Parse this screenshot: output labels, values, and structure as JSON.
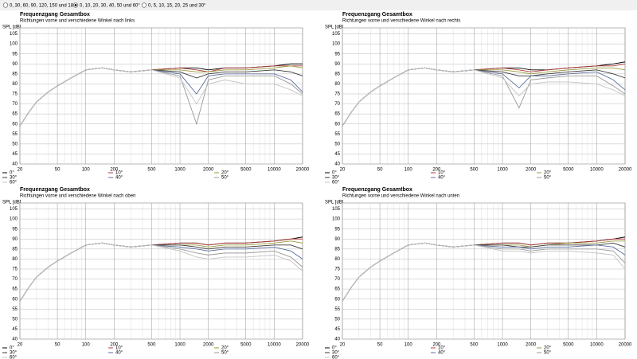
{
  "controls": {
    "options": [
      {
        "label": "0, 30, 60, 90, 120, 150 und 180°",
        "selected": false
      },
      {
        "label": "0, 10, 20, 30, 40, 50 und 60°",
        "selected": true
      },
      {
        "label": "0, 5, 10, 15, 20, 25 und 30°",
        "selected": false
      }
    ]
  },
  "chart_data": [
    {
      "type": "line",
      "title": "Frequenzgang Gesamtbox",
      "subtitle": "Richtungen vorne und verschiedene Winkel nach links",
      "ylabel": "SPL [dB]",
      "log_x": true,
      "grid": true,
      "xlim": [
        20,
        20000
      ],
      "ylim": [
        40,
        108
      ],
      "xticks": [
        20,
        50,
        100,
        200,
        500,
        1000,
        2000,
        5000,
        10000,
        20000
      ],
      "xminorticks": [
        30,
        40,
        60,
        70,
        80,
        90,
        300,
        400,
        600,
        700,
        800,
        900,
        3000,
        4000,
        6000,
        7000,
        8000,
        9000
      ],
      "yticks": [
        40,
        45,
        50,
        55,
        60,
        65,
        70,
        75,
        80,
        85,
        90,
        95,
        100,
        105
      ],
      "x": [
        20,
        25,
        30,
        40,
        50,
        70,
        100,
        150,
        200,
        300,
        500,
        1000,
        1500,
        2000,
        3000,
        5000,
        10000,
        15000,
        20000
      ],
      "series": [
        {
          "name": "0°",
          "color": "#000000",
          "values": [
            59,
            66,
            71,
            76,
            79,
            83,
            87,
            88,
            87,
            86,
            87,
            88,
            88,
            87,
            88,
            88,
            89,
            90,
            90
          ]
        },
        {
          "name": "10°",
          "color": "#b03a3a",
          "values": [
            59,
            66,
            71,
            76,
            79,
            83,
            87,
            88,
            87,
            86,
            87,
            88,
            87,
            86,
            88,
            88,
            89,
            89,
            89
          ]
        },
        {
          "name": "20°",
          "color": "#9a9a3a",
          "values": [
            59,
            66,
            71,
            76,
            79,
            83,
            87,
            88,
            87,
            86,
            87,
            87,
            86,
            86,
            87,
            87,
            88,
            89,
            88
          ]
        },
        {
          "name": "30°",
          "color": "#3a3a3a",
          "values": [
            59,
            66,
            71,
            76,
            79,
            83,
            87,
            88,
            87,
            86,
            87,
            86,
            83,
            85,
            86,
            86,
            87,
            86,
            84
          ]
        },
        {
          "name": "40°",
          "color": "#5a6e9c",
          "values": [
            59,
            66,
            71,
            76,
            79,
            83,
            87,
            88,
            87,
            86,
            87,
            85,
            75,
            84,
            85,
            85,
            85,
            82,
            76
          ]
        },
        {
          "name": "50°",
          "color": "#9a9a9a",
          "values": [
            59,
            66,
            71,
            76,
            79,
            83,
            87,
            88,
            87,
            86,
            87,
            84,
            60,
            82,
            84,
            84,
            84,
            80,
            75
          ]
        },
        {
          "name": "60°",
          "color": "#c4c4c4",
          "values": [
            59,
            66,
            71,
            76,
            79,
            83,
            87,
            88,
            87,
            86,
            87,
            83,
            70,
            80,
            82,
            80,
            80,
            77,
            74
          ]
        }
      ]
    },
    {
      "type": "line",
      "title": "Frequenzgang Gesamtbox",
      "subtitle": "Richtungen vorne und verschiedene Winkel nach rechts",
      "ylabel": "SPL [dB]",
      "log_x": true,
      "grid": true,
      "xlim": [
        20,
        20000
      ],
      "ylim": [
        40,
        108
      ],
      "xticks": [
        20,
        50,
        100,
        200,
        500,
        1000,
        2000,
        5000,
        10000,
        20000
      ],
      "xminorticks": [
        30,
        40,
        60,
        70,
        80,
        90,
        300,
        400,
        600,
        700,
        800,
        900,
        3000,
        4000,
        6000,
        7000,
        8000,
        9000
      ],
      "yticks": [
        40,
        45,
        50,
        55,
        60,
        65,
        70,
        75,
        80,
        85,
        90,
        95,
        100,
        105
      ],
      "x": [
        20,
        25,
        30,
        40,
        50,
        70,
        100,
        150,
        200,
        300,
        500,
        1000,
        1500,
        2000,
        3000,
        5000,
        10000,
        15000,
        20000
      ],
      "series": [
        {
          "name": "0°",
          "color": "#000000",
          "values": [
            59,
            66,
            71,
            76,
            79,
            83,
            87,
            88,
            87,
            86,
            87,
            88,
            88,
            87,
            87,
            88,
            89,
            90,
            91
          ]
        },
        {
          "name": "10°",
          "color": "#b03a3a",
          "values": [
            59,
            66,
            71,
            76,
            79,
            83,
            87,
            88,
            87,
            86,
            87,
            88,
            87,
            86,
            87,
            88,
            89,
            89,
            90
          ]
        },
        {
          "name": "20°",
          "color": "#9a9a3a",
          "values": [
            59,
            66,
            71,
            76,
            79,
            83,
            87,
            88,
            87,
            86,
            87,
            87,
            86,
            85,
            86,
            87,
            88,
            88,
            87
          ]
        },
        {
          "name": "30°",
          "color": "#3a3a3a",
          "values": [
            59,
            66,
            71,
            76,
            79,
            83,
            87,
            88,
            87,
            86,
            87,
            86,
            84,
            84,
            85,
            86,
            87,
            85,
            83
          ]
        },
        {
          "name": "40°",
          "color": "#5a6e9c",
          "values": [
            59,
            66,
            71,
            76,
            79,
            83,
            87,
            88,
            87,
            86,
            87,
            85,
            78,
            84,
            84,
            85,
            86,
            82,
            77
          ]
        },
        {
          "name": "50°",
          "color": "#9a9a9a",
          "values": [
            59,
            66,
            71,
            76,
            79,
            83,
            87,
            88,
            87,
            86,
            87,
            84,
            68,
            82,
            83,
            84,
            84,
            79,
            75
          ]
        },
        {
          "name": "60°",
          "color": "#c4c4c4",
          "values": [
            59,
            66,
            71,
            76,
            79,
            83,
            87,
            88,
            87,
            86,
            87,
            83,
            74,
            80,
            81,
            81,
            80,
            77,
            74
          ]
        }
      ]
    },
    {
      "type": "line",
      "title": "Frequenzgang Gesamtbox",
      "subtitle": "Richtungen vorne und verschiedene Winkel nach oben",
      "ylabel": "SPL [dB]",
      "log_x": true,
      "grid": true,
      "xlim": [
        20,
        20000
      ],
      "ylim": [
        40,
        108
      ],
      "xticks": [
        20,
        50,
        100,
        200,
        500,
        1000,
        2000,
        5000,
        10000,
        20000
      ],
      "xminorticks": [
        30,
        40,
        60,
        70,
        80,
        90,
        300,
        400,
        600,
        700,
        800,
        900,
        3000,
        4000,
        6000,
        7000,
        8000,
        9000
      ],
      "yticks": [
        40,
        45,
        50,
        55,
        60,
        65,
        70,
        75,
        80,
        85,
        90,
        95,
        100,
        105
      ],
      "x": [
        20,
        25,
        30,
        40,
        50,
        70,
        100,
        150,
        200,
        300,
        500,
        1000,
        1500,
        2000,
        3000,
        5000,
        10000,
        15000,
        20000
      ],
      "series": [
        {
          "name": "0°",
          "color": "#000000",
          "values": [
            59,
            66,
            71,
            76,
            79,
            83,
            87,
            88,
            87,
            86,
            87,
            88,
            88,
            87,
            88,
            88,
            89,
            90,
            91
          ]
        },
        {
          "name": "10°",
          "color": "#b03a3a",
          "values": [
            59,
            66,
            71,
            76,
            79,
            83,
            87,
            88,
            87,
            86,
            87,
            88,
            88,
            87,
            88,
            88,
            89,
            90,
            90
          ]
        },
        {
          "name": "20°",
          "color": "#9a9a3a",
          "values": [
            59,
            66,
            71,
            76,
            79,
            83,
            87,
            88,
            87,
            86,
            87,
            87,
            87,
            86,
            87,
            87,
            88,
            89,
            88
          ]
        },
        {
          "name": "30°",
          "color": "#3a3a3a",
          "values": [
            59,
            66,
            71,
            76,
            79,
            83,
            87,
            88,
            87,
            86,
            87,
            87,
            86,
            85,
            86,
            86,
            87,
            87,
            85
          ]
        },
        {
          "name": "40°",
          "color": "#5a6e9c",
          "values": [
            59,
            66,
            71,
            76,
            79,
            83,
            87,
            88,
            87,
            86,
            87,
            86,
            85,
            84,
            85,
            85,
            86,
            84,
            80
          ]
        },
        {
          "name": "50°",
          "color": "#9a9a9a",
          "values": [
            59,
            66,
            71,
            76,
            79,
            83,
            87,
            88,
            87,
            86,
            87,
            85,
            83,
            82,
            83,
            83,
            84,
            81,
            76
          ]
        },
        {
          "name": "60°",
          "color": "#c4c4c4",
          "values": [
            59,
            66,
            71,
            76,
            79,
            83,
            87,
            88,
            87,
            86,
            87,
            84,
            81,
            80,
            81,
            81,
            82,
            79,
            74
          ]
        }
      ]
    },
    {
      "type": "line",
      "title": "Frequenzgang Gesamtbox",
      "subtitle": "Richtungen vorne und verschiedene Winkel nach unten",
      "ylabel": "SPL [dB]",
      "log_x": true,
      "grid": true,
      "xlim": [
        20,
        20000
      ],
      "ylim": [
        40,
        108
      ],
      "xticks": [
        20,
        50,
        100,
        200,
        500,
        1000,
        2000,
        5000,
        10000,
        20000
      ],
      "xminorticks": [
        30,
        40,
        60,
        70,
        80,
        90,
        300,
        400,
        600,
        700,
        800,
        900,
        3000,
        4000,
        6000,
        7000,
        8000,
        9000
      ],
      "yticks": [
        40,
        45,
        50,
        55,
        60,
        65,
        70,
        75,
        80,
        85,
        90,
        95,
        100,
        105
      ],
      "x": [
        20,
        25,
        30,
        40,
        50,
        70,
        100,
        150,
        200,
        300,
        500,
        1000,
        1500,
        2000,
        3000,
        5000,
        10000,
        15000,
        20000
      ],
      "series": [
        {
          "name": "0°",
          "color": "#000000",
          "values": [
            59,
            66,
            71,
            76,
            79,
            83,
            87,
            88,
            87,
            86,
            87,
            88,
            88,
            87,
            88,
            88,
            89,
            90,
            91
          ]
        },
        {
          "name": "10°",
          "color": "#b03a3a",
          "values": [
            59,
            66,
            71,
            76,
            79,
            83,
            87,
            88,
            87,
            86,
            87,
            88,
            88,
            87,
            88,
            88,
            89,
            90,
            90
          ]
        },
        {
          "name": "20°",
          "color": "#9a9a3a",
          "values": [
            59,
            66,
            71,
            76,
            79,
            83,
            87,
            88,
            87,
            86,
            87,
            87,
            87,
            86,
            87,
            88,
            88,
            89,
            89
          ]
        },
        {
          "name": "30°",
          "color": "#3a3a3a",
          "values": [
            59,
            66,
            71,
            76,
            79,
            83,
            87,
            88,
            87,
            86,
            87,
            87,
            86,
            86,
            87,
            87,
            87,
            88,
            86
          ]
        },
        {
          "name": "40°",
          "color": "#5a6e9c",
          "values": [
            59,
            66,
            71,
            76,
            79,
            83,
            87,
            88,
            87,
            86,
            87,
            86,
            86,
            85,
            86,
            86,
            87,
            86,
            82
          ]
        },
        {
          "name": "50°",
          "color": "#9a9a9a",
          "values": [
            59,
            66,
            71,
            76,
            79,
            83,
            87,
            88,
            87,
            86,
            87,
            85,
            85,
            84,
            85,
            85,
            85,
            84,
            78
          ]
        },
        {
          "name": "60°",
          "color": "#c4c4c4",
          "values": [
            59,
            66,
            71,
            76,
            79,
            83,
            87,
            88,
            87,
            86,
            87,
            84,
            84,
            83,
            84,
            84,
            83,
            82,
            75
          ]
        }
      ]
    }
  ]
}
